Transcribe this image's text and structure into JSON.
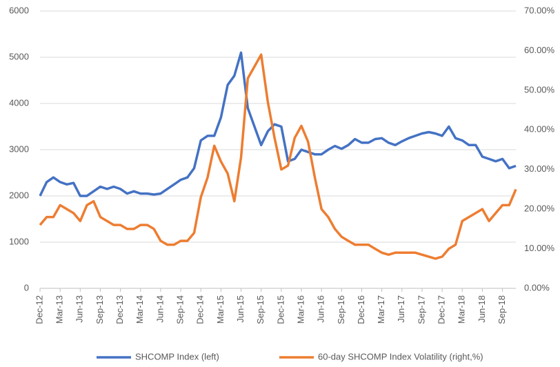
{
  "chart_data": {
    "type": "line",
    "categories": [
      "Dec-12",
      null,
      null,
      "Mar-13",
      null,
      null,
      "Jun-13",
      null,
      null,
      "Sep-13",
      null,
      null,
      "Dec-13",
      null,
      null,
      "Mar-14",
      null,
      null,
      "Jun-14",
      null,
      null,
      "Sep-14",
      null,
      null,
      "Dec-14",
      null,
      null,
      "Mar-15",
      null,
      null,
      "Jun-15",
      null,
      null,
      "Sep-15",
      null,
      null,
      "Dec-15",
      null,
      null,
      "Mar-16",
      null,
      null,
      "Jun-16",
      null,
      null,
      "Sep-16",
      null,
      null,
      "Dec-16",
      null,
      null,
      "Mar-17",
      null,
      null,
      "Jun-17",
      null,
      null,
      "Sep-17",
      null,
      null,
      "Dec-17",
      null,
      null,
      "Mar-18",
      null,
      null,
      "Jun-18",
      null,
      null,
      "Sep-18",
      null,
      null
    ],
    "series": [
      {
        "name": "SHCOMP Index (left)",
        "color": "#4472c4",
        "axis": "y",
        "values": [
          2000,
          2300,
          2400,
          2300,
          2250,
          2280,
          2000,
          2000,
          2100,
          2200,
          2150,
          2200,
          2150,
          2050,
          2100,
          2050,
          2050,
          2030,
          2050,
          2150,
          2250,
          2350,
          2400,
          2600,
          3200,
          3300,
          3300,
          3700,
          4400,
          4600,
          5100,
          3900,
          3500,
          3100,
          3400,
          3550,
          3500,
          2750,
          2800,
          3000,
          2950,
          2900,
          2900,
          3000,
          3080,
          3020,
          3100,
          3230,
          3150,
          3150,
          3230,
          3250,
          3150,
          3100,
          3180,
          3250,
          3300,
          3350,
          3380,
          3350,
          3300,
          3500,
          3250,
          3200,
          3100,
          3100,
          2850,
          2800,
          2750,
          2800,
          2600,
          2650
        ]
      },
      {
        "name": "60-day SHCOMP Index Volatility (right,%)",
        "color": "#ed7d31",
        "axis": "y2",
        "values": [
          16,
          18,
          18,
          21,
          20,
          19,
          17,
          21,
          22,
          18,
          17,
          16,
          16,
          15,
          15,
          16,
          16,
          15,
          12,
          11,
          11,
          12,
          12,
          14,
          23,
          28,
          36,
          32,
          29,
          22,
          33,
          53,
          56,
          59,
          47,
          38,
          30,
          31,
          38,
          41,
          37,
          28,
          20,
          18,
          15,
          13,
          12,
          11,
          11,
          11,
          10,
          9,
          8.5,
          9,
          9,
          9,
          9,
          8.5,
          8,
          7.5,
          8,
          10,
          11,
          17,
          18,
          19,
          20,
          17,
          19,
          21,
          21,
          25
        ]
      }
    ],
    "ylim": [
      0,
      6000
    ],
    "yticks": [
      0,
      1000,
      2000,
      3000,
      4000,
      5000,
      6000
    ],
    "y2lim": [
      0,
      70
    ],
    "y2ticks": [
      {
        "value": 0,
        "label": "0.00%"
      },
      {
        "value": 10,
        "label": "10.00%"
      },
      {
        "value": 20,
        "label": "20.00%"
      },
      {
        "value": 30,
        "label": "30.00%"
      },
      {
        "value": 40,
        "label": "40.00%"
      },
      {
        "value": 50,
        "label": "50.00%"
      },
      {
        "value": 60,
        "label": "60.00%"
      },
      {
        "value": 70,
        "label": "70.00%"
      }
    ],
    "grid": true,
    "legend": "bottom"
  }
}
